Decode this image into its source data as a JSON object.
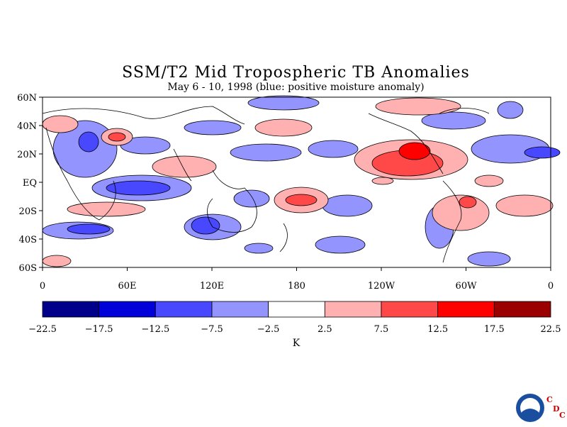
{
  "title": "SSM/T2 Mid Tropospheric TB Anomalies",
  "subtitle": "May 6 - 10, 1998 (blue: positive moisture anomaly)",
  "lat_labels": [
    "60N",
    "40N",
    "20N",
    "EQ",
    "20S",
    "40S",
    "60S"
  ],
  "lon_labels": [
    "0",
    "60E",
    "120E",
    "180",
    "120W",
    "60W",
    "0"
  ],
  "colorbar": {
    "ticks": [
      "-22.5",
      "-17.5",
      "-12.5",
      "-7.5",
      "-2.5",
      "2.5",
      "7.5",
      "12.5",
      "17.5",
      "22.5"
    ],
    "colors": [
      "#00008b",
      "#0000d8",
      "#4848ff",
      "#9494ff",
      "#ffffff",
      "#ffb0b0",
      "#ff4848",
      "#ff0000",
      "#9a0000"
    ],
    "unit": "K"
  },
  "logo": {
    "icon": "noaa-logo",
    "letters": [
      "C",
      "D",
      "C"
    ],
    "letter_color": "#cc0000"
  }
}
